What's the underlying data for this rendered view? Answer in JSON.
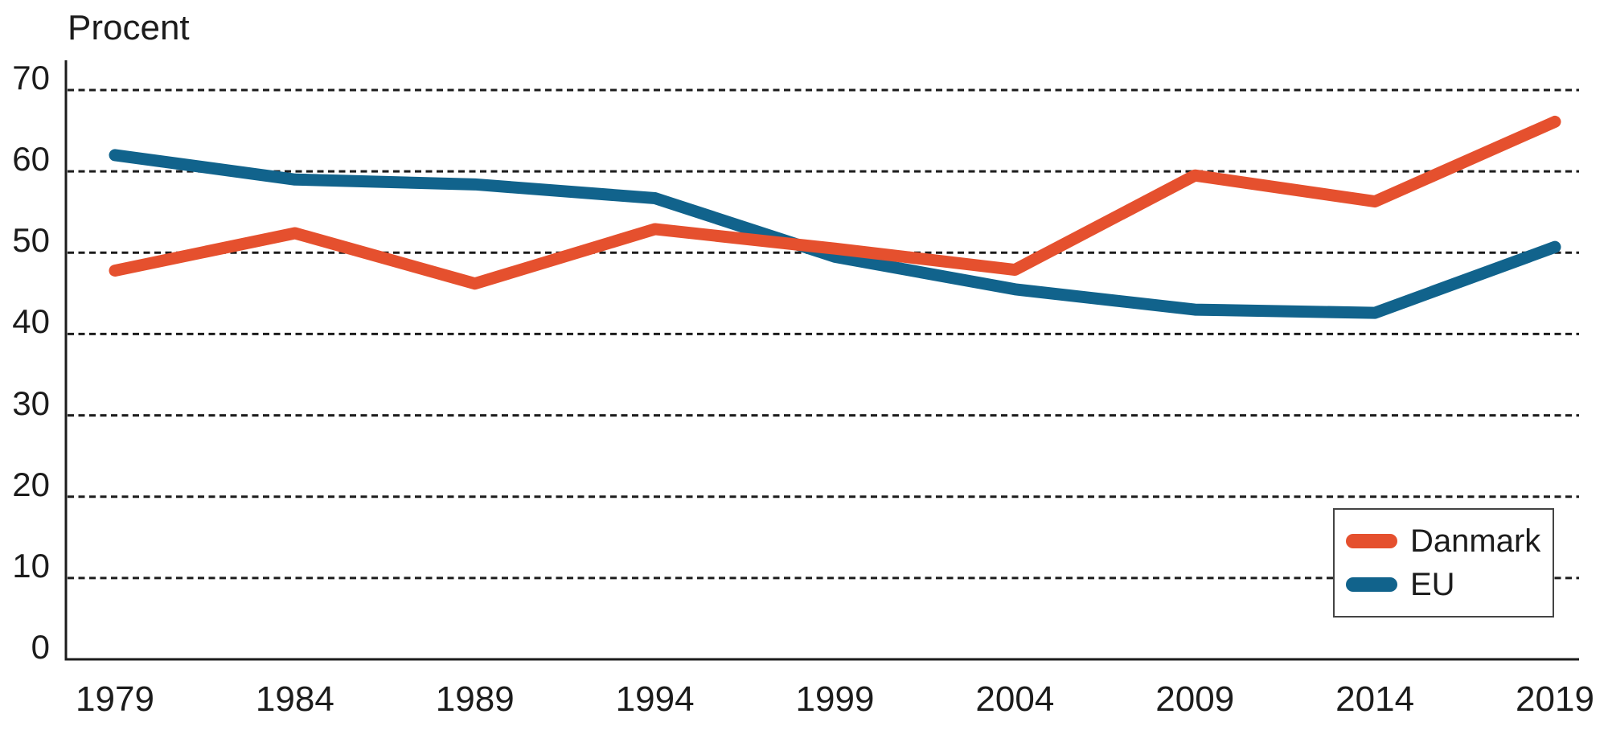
{
  "page": {
    "background": "#ffffff"
  },
  "axis": {
    "color": "#1c1c1c",
    "grid_color": "#1c1c1c",
    "text_color": "#1c1c1c"
  },
  "legend": {
    "items": [
      {
        "label": "Danmark",
        "color": "#e5502e"
      },
      {
        "label": "EU",
        "color": "#11638c"
      }
    ]
  },
  "chart_data": {
    "type": "line",
    "title": "",
    "ylabel": "Procent",
    "xlabel": "",
    "x": [
      1979,
      1984,
      1989,
      1994,
      1999,
      2004,
      2009,
      2014,
      2019
    ],
    "series": [
      {
        "name": "Danmark",
        "color": "#e5502e",
        "values": [
          47.8,
          52.4,
          46.2,
          52.9,
          50.5,
          47.9,
          59.5,
          56.3,
          66.1
        ]
      },
      {
        "name": "EU",
        "color": "#11638c",
        "values": [
          62.0,
          59.0,
          58.4,
          56.7,
          49.5,
          45.5,
          43.0,
          42.6,
          50.7
        ]
      }
    ],
    "ylim": [
      0,
      70
    ],
    "yticks": [
      0,
      10,
      20,
      30,
      40,
      50,
      60,
      70
    ],
    "grid": "horizontal-dotted",
    "legend_position": "lower-right"
  }
}
